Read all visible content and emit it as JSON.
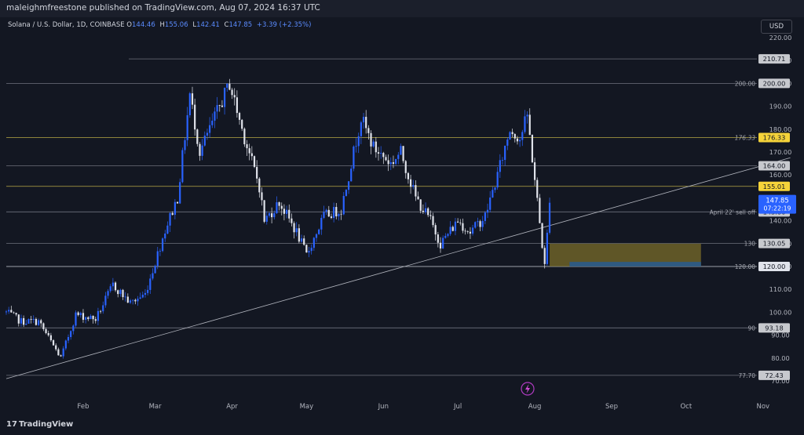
{
  "header": {
    "published_by": "maleighmfreestone published on TradingView.com, Aug 07, 2024 16:37 UTC"
  },
  "symbol_legend": {
    "name": "Solana / U.S. Dollar, 1D, COINBASE",
    "open_label": "O",
    "open": "144.46",
    "high_label": "H",
    "high": "155.06",
    "low_label": "L",
    "low": "142.41",
    "close_label": "C",
    "close": "147.85",
    "change": "+3.39 (+2.35%)"
  },
  "currency_button": "USD",
  "footer": {
    "brand": "TradingView"
  },
  "colors": {
    "background": "#131722",
    "candle_up": "#2962ff",
    "candle_down": "#e0e3eb",
    "yellow_level": "#c9b84a",
    "zone_fill": "#7a6c2a",
    "last_price": "#2962ff"
  },
  "chart_data": {
    "type": "candlestick",
    "title": "",
    "xlabel": "",
    "ylabel": "",
    "ylim": [
      66,
      224
    ],
    "x_ticks": [
      "Feb",
      "Mar",
      "Apr",
      "May",
      "Jun",
      "Jul",
      "Aug",
      "Sep",
      "Oct",
      "Nov"
    ],
    "y_ticks": [
      "220.00",
      "210.00",
      "200.00",
      "190.00",
      "180.00",
      "170.00",
      "160.00",
      "150.00",
      "140.00",
      "130.00",
      "120.00",
      "110.00",
      "100.00",
      "90.00",
      "80.00",
      "70.00"
    ],
    "price_path": {
      "start_date": "2024-01-01",
      "end_date": "2024-08-07",
      "anchors": [
        [
          "2024-01-01",
          100
        ],
        [
          "2024-01-07",
          96
        ],
        [
          "2024-01-14",
          96
        ],
        [
          "2024-01-23",
          80
        ],
        [
          "2024-01-29",
          99
        ],
        [
          "2024-02-06",
          97
        ],
        [
          "2024-02-13",
          112
        ],
        [
          "2024-02-20",
          104
        ],
        [
          "2024-02-26",
          108
        ],
        [
          "2024-03-05",
          136
        ],
        [
          "2024-03-10",
          150
        ],
        [
          "2024-03-15",
          195
        ],
        [
          "2024-03-19",
          170
        ],
        [
          "2024-03-25",
          185
        ],
        [
          "2024-03-31",
          200
        ],
        [
          "2024-04-05",
          180
        ],
        [
          "2024-04-12",
          155
        ],
        [
          "2024-04-14",
          140
        ],
        [
          "2024-04-20",
          148
        ],
        [
          "2024-04-27",
          135
        ],
        [
          "2024-05-01",
          125
        ],
        [
          "2024-05-08",
          142
        ],
        [
          "2024-05-15",
          145
        ],
        [
          "2024-05-20",
          170
        ],
        [
          "2024-05-23",
          185
        ],
        [
          "2024-05-28",
          172
        ],
        [
          "2024-06-04",
          165
        ],
        [
          "2024-06-08",
          170
        ],
        [
          "2024-06-14",
          150
        ],
        [
          "2024-06-20",
          140
        ],
        [
          "2024-06-24",
          130
        ],
        [
          "2024-07-01",
          140
        ],
        [
          "2024-07-06",
          135
        ],
        [
          "2024-07-12",
          142
        ],
        [
          "2024-07-17",
          160
        ],
        [
          "2024-07-22",
          180
        ],
        [
          "2024-07-26",
          176
        ],
        [
          "2024-07-29",
          186
        ],
        [
          "2024-08-01",
          158
        ],
        [
          "2024-08-05",
          120
        ],
        [
          "2024-08-07",
          147.85
        ]
      ]
    },
    "horizontal_levels": [
      {
        "price": 210.71,
        "label": "",
        "axis_label": "210.71",
        "color": "#787b86"
      },
      {
        "price": 200.0,
        "label": "200.00",
        "axis_label": "200.00",
        "color": "#787b86"
      },
      {
        "price": 176.33,
        "label": "176.33",
        "axis_label": "176.33",
        "color": "#c9b84a"
      },
      {
        "price": 164.0,
        "label": "",
        "axis_label": "164.00",
        "color": "#787b86"
      },
      {
        "price": 155.01,
        "label": "",
        "axis_label": "155.01",
        "color": "#c9b84a"
      },
      {
        "price": 143.86,
        "label": "April 22' sell off",
        "axis_label": "143.86",
        "color": "#787b86"
      },
      {
        "price": 130.05,
        "label": "130",
        "axis_label": "130.05",
        "color": "#787b86"
      },
      {
        "price": 120.0,
        "label": "120.00",
        "axis_label": "120.00",
        "color": "#e0e3eb"
      },
      {
        "price": 93.18,
        "label": "90",
        "axis_label": "93.18",
        "color": "#787b86"
      },
      {
        "price": 72.43,
        "label": "77.70",
        "axis_label": "72.43",
        "color": "#787b86"
      }
    ],
    "last_price": {
      "price": 147.85,
      "label": "147.85",
      "countdown": "07:22:19"
    },
    "trendline": {
      "from_date": "2024-01-01",
      "from_price": 71,
      "to_date": "2024-11-12",
      "to_price": 167.5
    },
    "zone": {
      "from_date": "2024-08-07",
      "to_date": "2024-10-07",
      "top": 130,
      "bottom": 120
    },
    "zone_inner": {
      "from_date": "2024-08-15",
      "to_date": "2024-10-07",
      "top": 122,
      "bottom": 120
    }
  }
}
